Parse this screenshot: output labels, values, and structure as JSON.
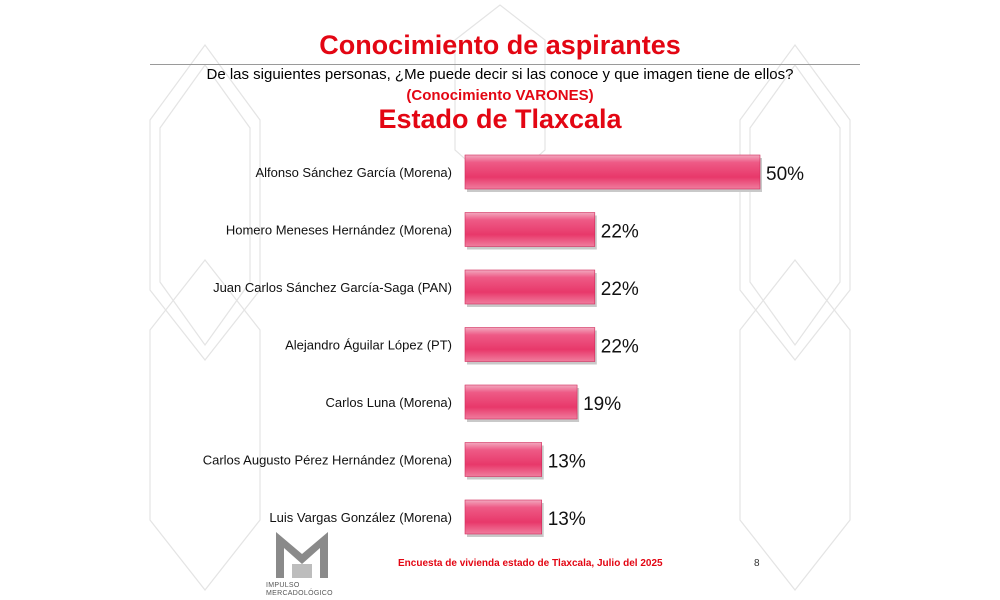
{
  "header": {
    "title": "Conocimiento de aspirantes",
    "question": "De las siguientes personas, ¿Me puede decir si las conoce y que imagen tiene de ellos?",
    "subtitle": "(Conocimiento VARONES)",
    "state": "Estado de Tlaxcala"
  },
  "chart_data": {
    "type": "bar",
    "orientation": "horizontal",
    "categories": [
      "Alfonso Sánchez García (Morena)",
      "Homero Meneses Hernández (Morena)",
      "Juan Carlos Sánchez García-Saga (PAN)",
      "Alejandro Águilar López (PT)",
      "Carlos Luna (Morena)",
      "Carlos Augusto Pérez Hernández (Morena)",
      "Luis Vargas González (Morena)"
    ],
    "values": [
      50,
      22,
      22,
      22,
      19,
      13,
      13
    ],
    "value_labels": [
      "50%",
      "22%",
      "22%",
      "22%",
      "19%",
      "13%",
      "13%"
    ],
    "bar_color": "#e8386a",
    "grid": false,
    "legend": "none"
  },
  "footer": {
    "source": "Encuesta de vivienda estado de Tlaxcala, Julio   del 2025",
    "page": "8",
    "logo_text": [
      "IMPULSO",
      "MERCADOLÓGICO"
    ]
  }
}
